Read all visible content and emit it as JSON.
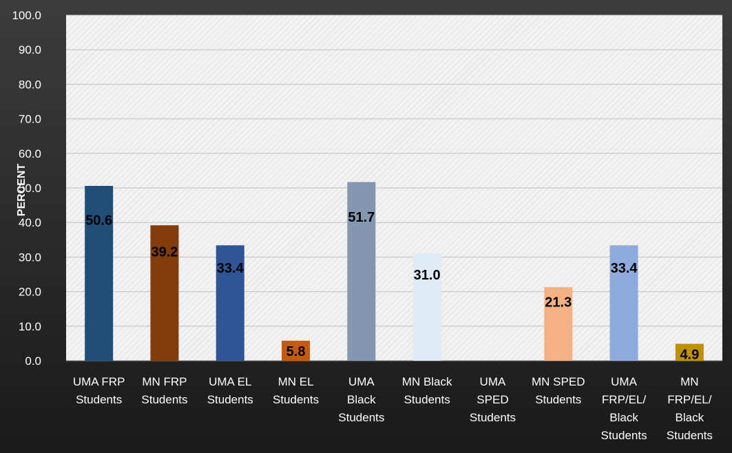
{
  "chart_data": {
    "type": "bar",
    "categories": [
      "UMA FRP Students",
      "MN FRP Students",
      "UMA EL Students",
      "MN EL Students",
      "UMA Black Students",
      "MN Black Students",
      "UMA SPED Students",
      "MN SPED Students",
      "UMA FRP/EL/ Black Students",
      "MN FRP/EL/ Black Students"
    ],
    "category_lines": [
      [
        "UMA FRP",
        "Students"
      ],
      [
        "MN FRP",
        "Students"
      ],
      [
        "UMA EL",
        "Students"
      ],
      [
        "MN EL",
        "Students"
      ],
      [
        "UMA",
        "Black",
        "Students"
      ],
      [
        "MN Black",
        "Students"
      ],
      [
        "UMA",
        "SPED",
        "Students"
      ],
      [
        "MN SPED",
        "Students"
      ],
      [
        "UMA",
        "FRP/EL/",
        "Black",
        "Students"
      ],
      [
        "MN",
        "FRP/EL/",
        "Black",
        "Students"
      ]
    ],
    "values": [
      50.6,
      39.2,
      33.4,
      5.8,
      51.7,
      31.0,
      null,
      21.3,
      33.4,
      4.9
    ],
    "data_labels": [
      "50.6",
      "39.2",
      "33.4",
      "5.8",
      "51.7",
      "31.0",
      "",
      "21.3",
      "33.4",
      "4.9"
    ],
    "bar_colors": [
      "#1f4e79",
      "#843c0c",
      "#2f5597",
      "#c55a11",
      "#8497b0",
      "#deebf7",
      "#a5a5a5",
      "#f4b183",
      "#8faadc",
      "#bf9000"
    ],
    "ylabel": "PERCENT",
    "ylim": [
      0,
      100
    ],
    "y_ticks": [
      "0.0",
      "10.0",
      "20.0",
      "30.0",
      "40.0",
      "50.0",
      "60.0",
      "70.0",
      "80.0",
      "90.0",
      "100.0"
    ],
    "grid": true,
    "legend": "none",
    "colors": {
      "background_top": "#3c3c3c",
      "background_bottom": "#1a1a1a",
      "plot_area": "#ebebeb",
      "gridline": "#bfbfbf",
      "axis_text": "#ffffff",
      "label_text": "#000000"
    }
  }
}
